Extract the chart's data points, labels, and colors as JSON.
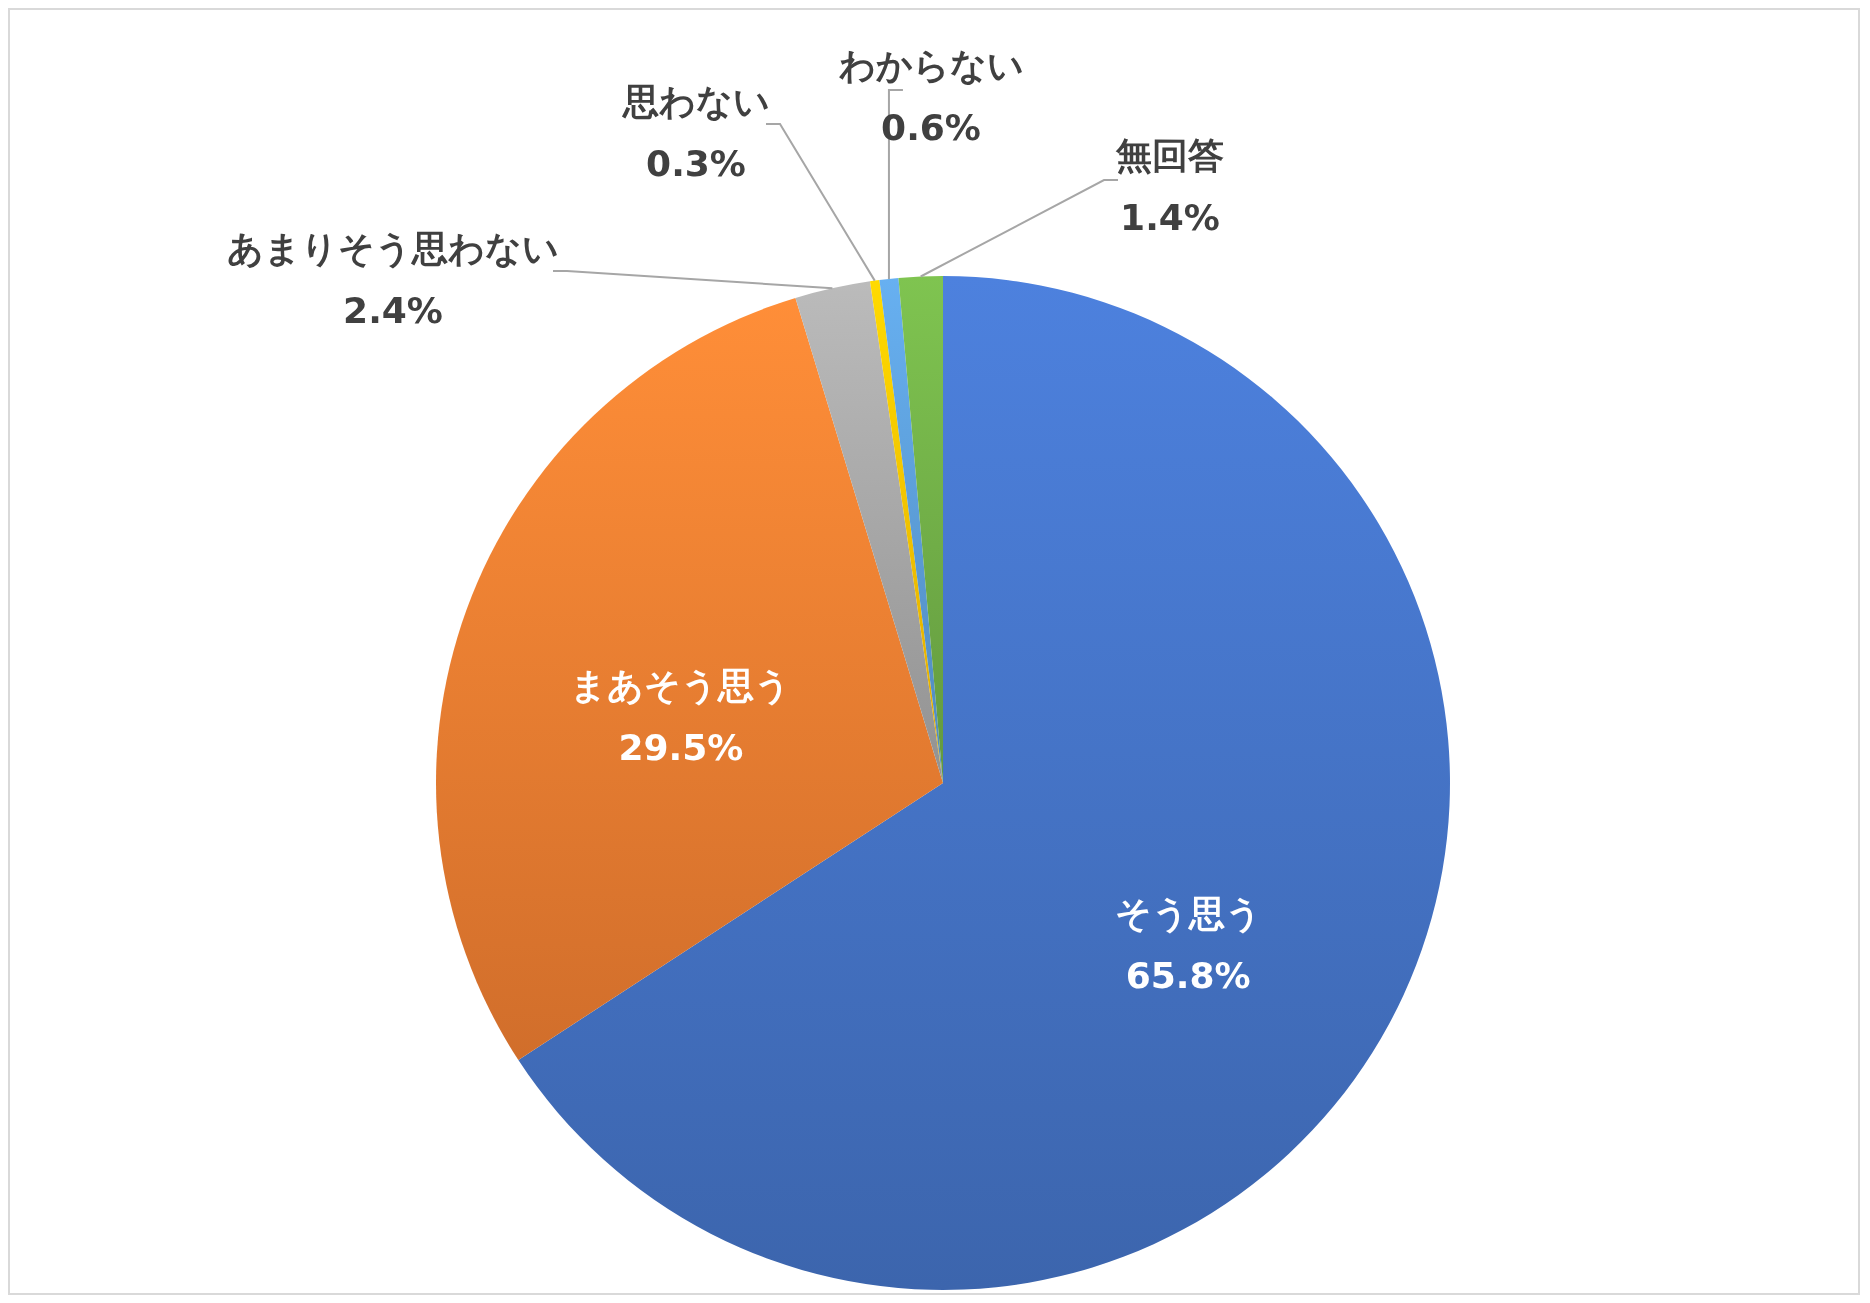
{
  "chart_data": {
    "type": "pie",
    "categories": [
      "そう思う",
      "まあそう思う",
      "あまりそう思わない",
      "思わない",
      "わからない",
      "無回答"
    ],
    "values": [
      65.8,
      29.5,
      2.4,
      0.3,
      0.6,
      1.4
    ],
    "value_labels": [
      "65.8%",
      "29.5%",
      "2.4%",
      "0.3%",
      "0.6%",
      "1.4%"
    ],
    "colors": [
      "#4472c4",
      "#ed7d31",
      "#a5a5a5",
      "#ffc000",
      "#5b9bd5",
      "#70ad47"
    ]
  }
}
